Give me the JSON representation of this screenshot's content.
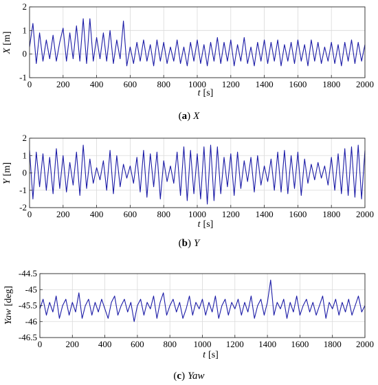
{
  "chart_data": [
    {
      "type": "line",
      "panel": "a",
      "caption_letter": "a",
      "caption_var": "X",
      "ylabel_var": "X",
      "ylabel_unit": "[m]",
      "xlabel_var": "t",
      "xlabel_unit": "[s]",
      "xlim": [
        0,
        2000
      ],
      "ylim": [
        -1,
        2
      ],
      "xticks": [
        "0",
        "200",
        "400",
        "600",
        "800",
        "1000",
        "1200",
        "1400",
        "1600",
        "1800",
        "2000"
      ],
      "yticks": [
        "-1",
        "0",
        "1",
        "2"
      ],
      "grid": true,
      "color": "#1a1aa6",
      "series": [
        {
          "x": [
            0,
            20,
            40,
            60,
            80,
            100,
            120,
            140,
            160,
            180,
            200,
            220,
            240,
            260,
            280,
            300,
            320,
            340,
            360,
            380,
            400,
            420,
            440,
            460,
            480,
            500,
            520,
            540,
            560,
            580,
            600,
            620,
            640,
            660,
            680,
            700,
            720,
            740,
            760,
            780,
            800,
            820,
            840,
            860,
            880,
            900,
            920,
            940,
            960,
            980,
            1000,
            1020,
            1040,
            1060,
            1080,
            1100,
            1120,
            1140,
            1160,
            1180,
            1200,
            1220,
            1240,
            1260,
            1280,
            1300,
            1320,
            1340,
            1360,
            1380,
            1400,
            1420,
            1440,
            1460,
            1480,
            1500,
            1520,
            1540,
            1560,
            1580,
            1600,
            1620,
            1640,
            1660,
            1680,
            1700,
            1720,
            1740,
            1760,
            1780,
            1800,
            1820,
            1840,
            1860,
            1880,
            1900,
            1920,
            1940,
            1960,
            1980,
            2000
          ],
          "y": [
            0.3,
            1.3,
            -0.4,
            0.9,
            -0.3,
            0.6,
            -0.2,
            0.8,
            -0.3,
            0.5,
            1.1,
            -0.3,
            0.9,
            -0.2,
            1.2,
            -0.3,
            1.5,
            -0.4,
            1.5,
            -0.3,
            0.7,
            -0.2,
            0.9,
            -0.3,
            1.0,
            -0.4,
            0.6,
            -0.2,
            1.4,
            -0.5,
            0.3,
            -0.4,
            0.5,
            -0.3,
            0.6,
            -0.3,
            0.4,
            -0.5,
            0.6,
            -0.3,
            0.5,
            -0.4,
            0.3,
            -0.3,
            0.6,
            -0.4,
            0.3,
            -0.5,
            0.5,
            -0.3,
            0.6,
            -0.4,
            0.4,
            -0.5,
            0.5,
            -0.3,
            0.7,
            -0.4,
            0.5,
            -0.3,
            0.6,
            -0.5,
            0.4,
            -0.3,
            0.7,
            -0.4,
            0.3,
            -0.5,
            0.5,
            -0.3,
            0.6,
            -0.4,
            0.5,
            -0.3,
            0.6,
            -0.5,
            0.4,
            -0.3,
            0.5,
            -0.4,
            0.6,
            -0.3,
            0.4,
            -0.5,
            0.6,
            -0.3,
            0.5,
            -0.4,
            0.3,
            -0.3,
            0.5,
            -0.4,
            0.4,
            -0.5,
            0.5,
            -0.3,
            0.6,
            -0.4,
            0.5,
            -0.3,
            0.4
          ]
        }
      ]
    },
    {
      "type": "line",
      "panel": "b",
      "caption_letter": "b",
      "caption_var": "Y",
      "ylabel_var": "Y",
      "ylabel_unit": "[m]",
      "xlabel_var": "t",
      "xlabel_unit": "[s]",
      "xlim": [
        0,
        2000
      ],
      "ylim": [
        -2,
        2
      ],
      "xticks": [
        "0",
        "200",
        "400",
        "600",
        "800",
        "1000",
        "1200",
        "1400",
        "1600",
        "1800",
        "2000"
      ],
      "yticks": [
        "-2",
        "-1",
        "0",
        "1",
        "2"
      ],
      "grid": true,
      "color": "#1a1aa6",
      "series": [
        {
          "x": [
            0,
            20,
            40,
            60,
            80,
            100,
            120,
            140,
            160,
            180,
            200,
            220,
            240,
            260,
            280,
            300,
            320,
            340,
            360,
            380,
            400,
            420,
            440,
            460,
            480,
            500,
            520,
            540,
            560,
            580,
            600,
            620,
            640,
            660,
            680,
            700,
            720,
            740,
            760,
            780,
            800,
            820,
            840,
            860,
            880,
            900,
            920,
            940,
            960,
            980,
            1000,
            1020,
            1040,
            1060,
            1080,
            1100,
            1120,
            1140,
            1160,
            1180,
            1200,
            1220,
            1240,
            1260,
            1280,
            1300,
            1320,
            1340,
            1360,
            1380,
            1400,
            1420,
            1440,
            1460,
            1480,
            1500,
            1520,
            1540,
            1560,
            1580,
            1600,
            1620,
            1640,
            1660,
            1680,
            1700,
            1720,
            1740,
            1760,
            1780,
            1800,
            1820,
            1840,
            1860,
            1880,
            1900,
            1920,
            1940,
            1960,
            1980,
            2000
          ],
          "y": [
            1.3,
            -1.5,
            1.2,
            -0.8,
            1.1,
            -1.0,
            0.9,
            -1.2,
            1.4,
            -0.9,
            1.0,
            -1.1,
            0.6,
            -0.7,
            1.2,
            -1.3,
            1.6,
            -0.9,
            0.8,
            -0.6,
            0.3,
            -0.4,
            0.7,
            -1.0,
            1.3,
            -1.2,
            1.0,
            -0.8,
            0.5,
            -0.3,
            0.4,
            -0.6,
            0.9,
            -1.1,
            1.3,
            -1.4,
            1.1,
            -0.8,
            1.2,
            -1.5,
            0.7,
            -0.5,
            0.4,
            -0.6,
            1.2,
            -1.3,
            1.5,
            -1.6,
            1.3,
            -1.2,
            1.1,
            -1.5,
            1.5,
            -1.8,
            1.6,
            -1.6,
            1.5,
            -1.2,
            0.9,
            -0.8,
            1.1,
            -1.3,
            1.2,
            -0.9,
            0.7,
            -0.5,
            0.9,
            -1.1,
            1.0,
            -0.7,
            0.4,
            -0.5,
            0.8,
            -1.0,
            1.2,
            -1.1,
            1.3,
            -1.2,
            1.0,
            -0.9,
            1.2,
            -1.3,
            0.8,
            -0.6,
            0.5,
            -0.4,
            0.6,
            -0.3,
            0.4,
            -0.7,
            0.9,
            -1.0,
            1.1,
            -1.2,
            1.4,
            -1.3,
            1.5,
            -1.4,
            1.6,
            -1.5,
            1.3
          ]
        }
      ]
    },
    {
      "type": "line",
      "panel": "c",
      "caption_letter": "c",
      "caption_var": "Yaw",
      "ylabel_var": "Yaw",
      "ylabel_unit": "[deg]",
      "xlabel_var": "t",
      "xlabel_unit": "[s]",
      "xlim": [
        0,
        2000
      ],
      "ylim": [
        -46.5,
        -44.5
      ],
      "xticks": [
        "0",
        "200",
        "400",
        "600",
        "800",
        "1000",
        "1200",
        "1400",
        "1600",
        "1800",
        "2000"
      ],
      "yticks": [
        "-44.5",
        "-45",
        "-45.5",
        "-46",
        "-46.5"
      ],
      "grid": true,
      "color": "#1a1aa6",
      "series": [
        {
          "x": [
            0,
            20,
            40,
            60,
            80,
            100,
            120,
            140,
            160,
            180,
            200,
            220,
            240,
            260,
            280,
            300,
            320,
            340,
            360,
            380,
            400,
            420,
            440,
            460,
            480,
            500,
            520,
            540,
            560,
            580,
            600,
            620,
            640,
            660,
            680,
            700,
            720,
            740,
            760,
            780,
            800,
            820,
            840,
            860,
            880,
            900,
            920,
            940,
            960,
            980,
            1000,
            1020,
            1040,
            1060,
            1080,
            1100,
            1120,
            1140,
            1160,
            1180,
            1200,
            1220,
            1240,
            1260,
            1280,
            1300,
            1320,
            1340,
            1360,
            1380,
            1400,
            1420,
            1440,
            1460,
            1480,
            1500,
            1520,
            1540,
            1560,
            1580,
            1600,
            1620,
            1640,
            1660,
            1680,
            1700,
            1720,
            1740,
            1760,
            1780,
            1800,
            1820,
            1840,
            1860,
            1880,
            1900,
            1920,
            1940,
            1960,
            1980,
            2000
          ],
          "y": [
            -45.6,
            -45.3,
            -45.8,
            -45.4,
            -45.7,
            -45.2,
            -45.9,
            -45.5,
            -45.3,
            -45.8,
            -45.4,
            -45.7,
            -45.1,
            -45.9,
            -45.5,
            -45.3,
            -45.8,
            -45.4,
            -45.7,
            -45.3,
            -45.6,
            -45.9,
            -45.4,
            -45.2,
            -45.8,
            -45.5,
            -45.3,
            -45.7,
            -45.4,
            -46.0,
            -45.5,
            -45.3,
            -45.8,
            -45.4,
            -45.6,
            -45.2,
            -45.9,
            -45.4,
            -45.1,
            -45.8,
            -45.5,
            -45.3,
            -45.7,
            -45.4,
            -45.9,
            -45.6,
            -45.2,
            -45.8,
            -45.4,
            -45.6,
            -45.3,
            -45.8,
            -45.4,
            -45.7,
            -45.2,
            -45.9,
            -45.5,
            -45.3,
            -45.8,
            -45.4,
            -45.6,
            -45.3,
            -45.8,
            -45.4,
            -45.7,
            -45.2,
            -45.9,
            -45.5,
            -45.3,
            -45.8,
            -45.4,
            -44.7,
            -45.8,
            -45.4,
            -45.6,
            -45.3,
            -45.9,
            -45.4,
            -45.7,
            -45.2,
            -45.8,
            -45.5,
            -45.3,
            -45.7,
            -45.4,
            -45.8,
            -45.5,
            -45.2,
            -45.9,
            -45.4,
            -45.6,
            -45.3,
            -45.8,
            -45.4,
            -45.7,
            -45.3,
            -45.8,
            -45.5,
            -45.2,
            -45.7,
            -45.5
          ]
        }
      ]
    }
  ]
}
